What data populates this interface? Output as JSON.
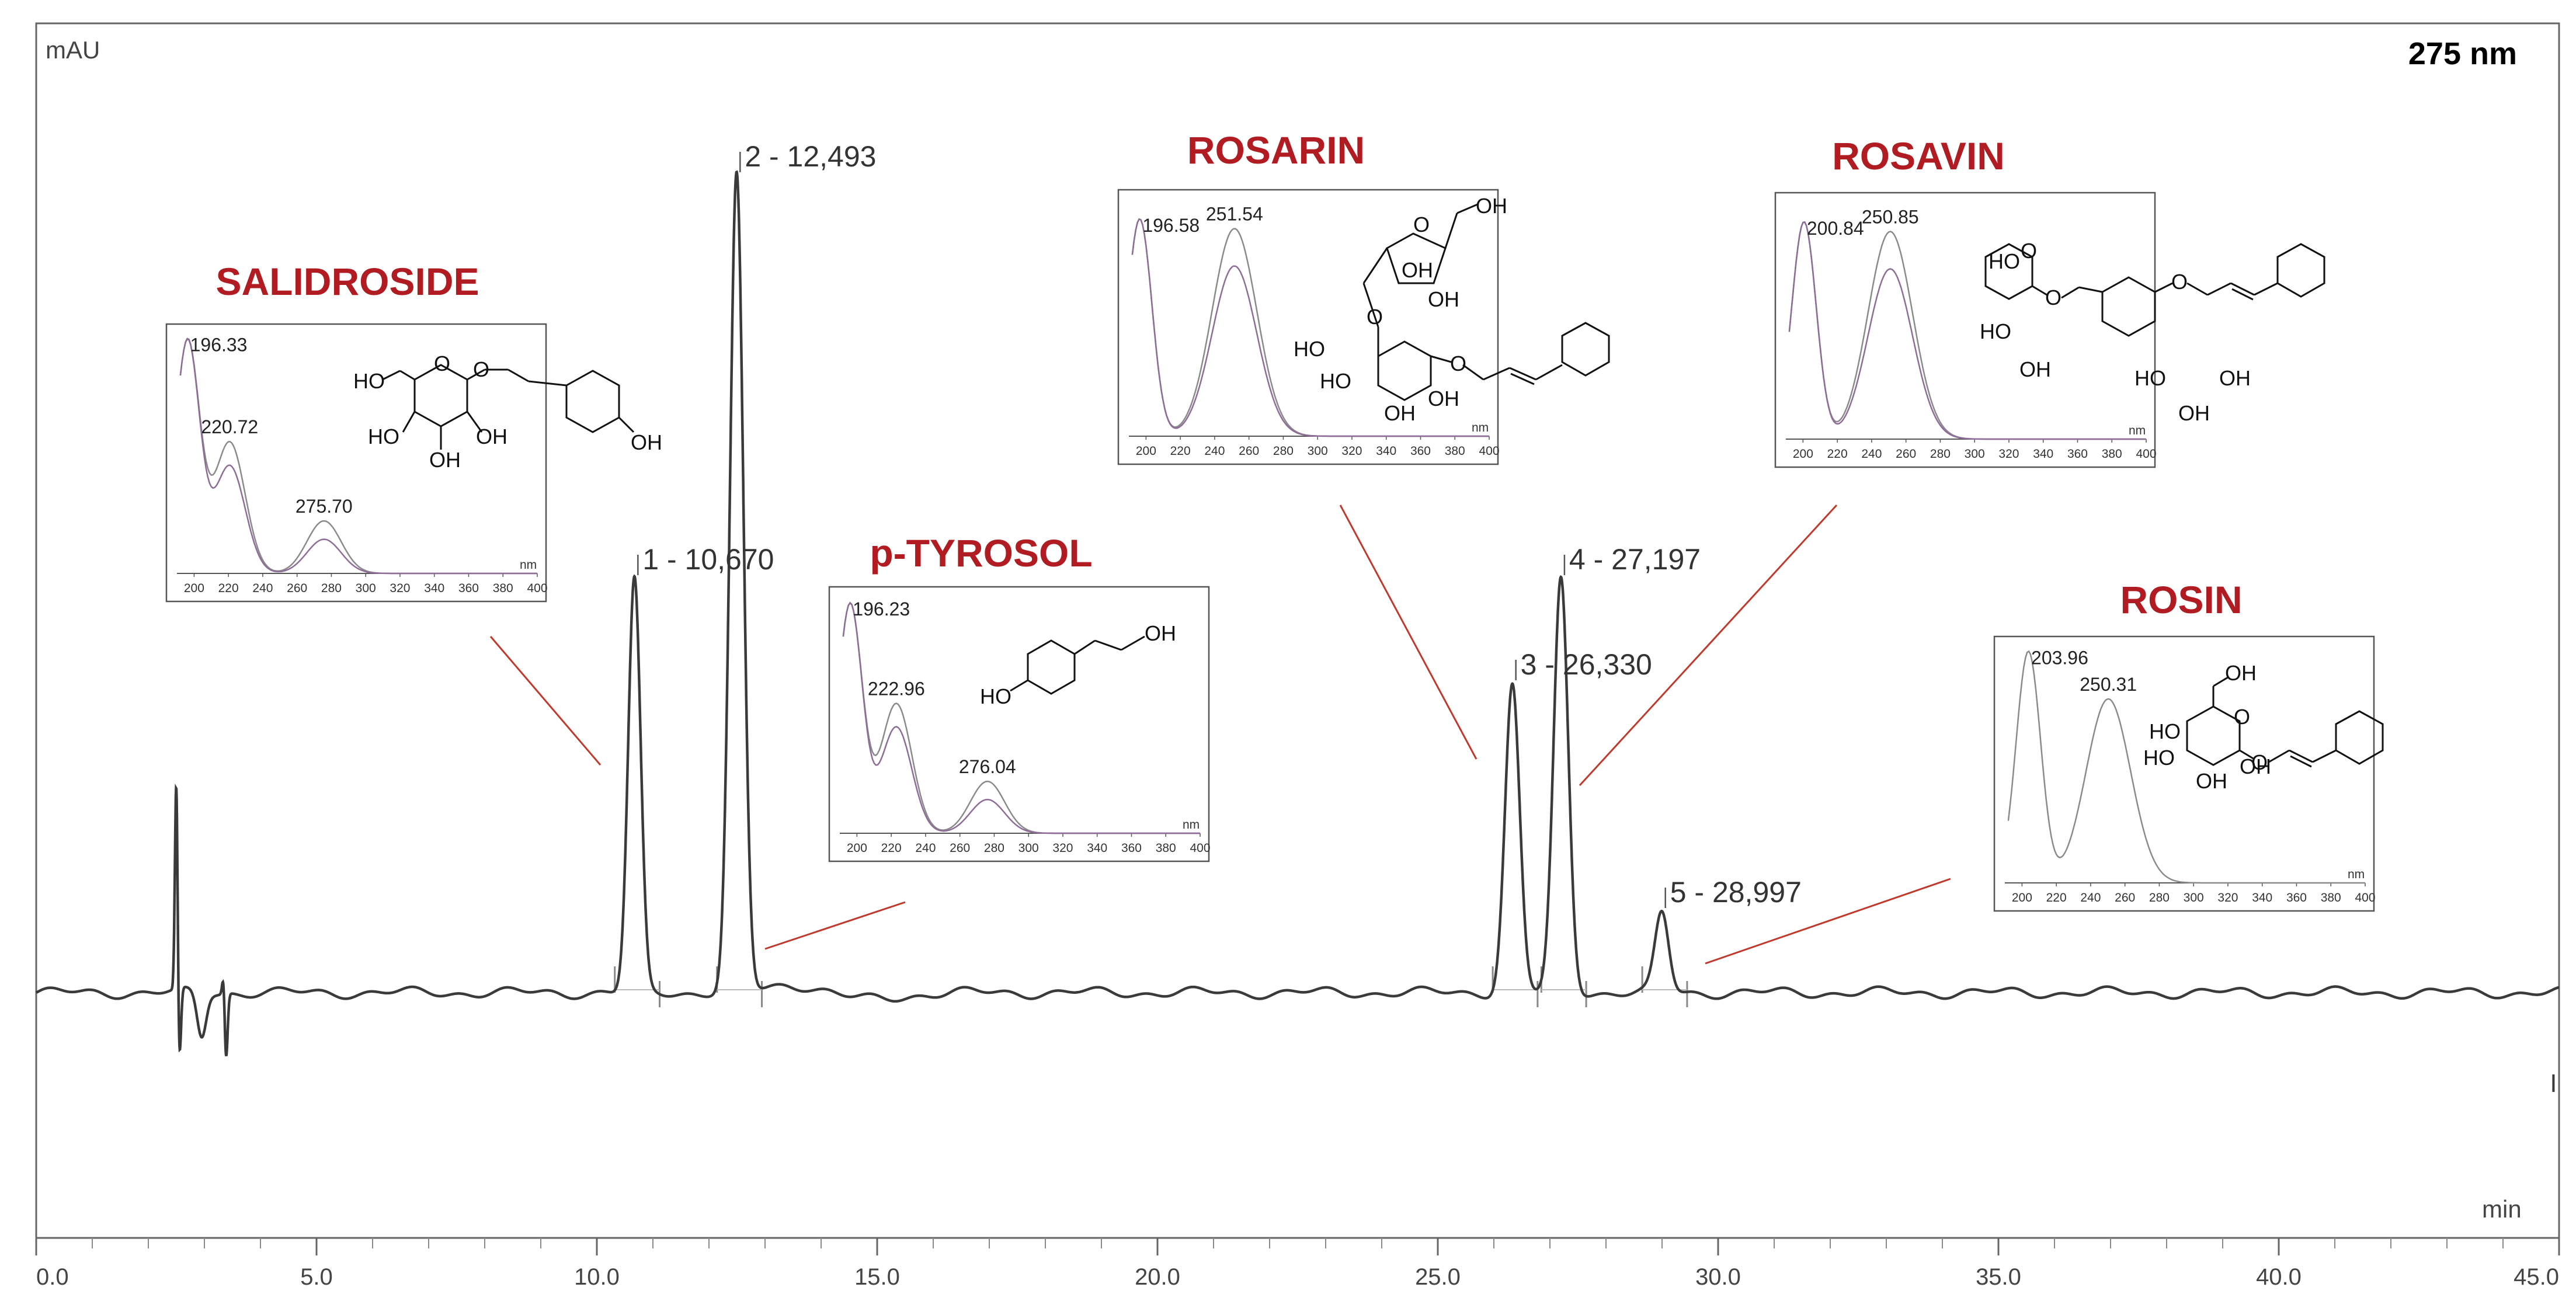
{
  "chart_data": {
    "type": "line",
    "title": "",
    "wavelength_label": "275 nm",
    "ylabel": "mAU",
    "xlabel": "min",
    "xlim": [
      0,
      45
    ],
    "x_ticks": [
      "0.0",
      "5.0",
      "10.0",
      "15.0",
      "20.0",
      "25.0",
      "30.0",
      "35.0",
      "40.0",
      "45.0"
    ],
    "grid": false,
    "peaks": [
      {
        "id": 1,
        "rt": 10.67,
        "height": 0.47,
        "label": "1 - 10,670"
      },
      {
        "id": 2,
        "rt": 12.493,
        "height": 0.93,
        "label": "2 - 12,493"
      },
      {
        "id": 3,
        "rt": 26.33,
        "height": 0.35,
        "label": "3 - 26,330"
      },
      {
        "id": 4,
        "rt": 27.197,
        "height": 0.47,
        "label": "4 - 27,197"
      },
      {
        "id": 5,
        "rt": 28.997,
        "height": 0.09,
        "label": "5 - 28,997"
      }
    ],
    "insets": [
      {
        "name": "SALIDROSIDE",
        "peak_id": 1,
        "uv_maxima": [
          "196.33",
          "220.72",
          "275.70"
        ],
        "x_ticks": [
          "200",
          "220",
          "240",
          "260",
          "280",
          "300",
          "320",
          "340",
          "360",
          "380",
          "400"
        ],
        "x_unit": "nm",
        "substituents": [
          "HO",
          "HO",
          "OH",
          "OH",
          "OH"
        ]
      },
      {
        "name": "p-TYROSOL",
        "peak_id": 2,
        "uv_maxima": [
          "196.23",
          "222.96",
          "276.04"
        ],
        "x_ticks": [
          "200",
          "220",
          "240",
          "260",
          "280",
          "300",
          "320",
          "340",
          "360",
          "380",
          "400"
        ],
        "x_unit": "nm",
        "substituents": [
          "HO",
          "OH"
        ]
      },
      {
        "name": "ROSARIN",
        "peak_id": 3,
        "uv_maxima": [
          "196.58",
          "251.54"
        ],
        "x_ticks": [
          "200",
          "220",
          "240",
          "260",
          "280",
          "300",
          "320",
          "340",
          "360",
          "380",
          "400"
        ],
        "x_unit": "nm",
        "substituents": [
          "OH",
          "OH",
          "OH",
          "HO",
          "HO",
          "OH",
          "OH"
        ]
      },
      {
        "name": "ROSAVIN",
        "peak_id": 4,
        "uv_maxima": [
          "200.84",
          "250.85"
        ],
        "x_ticks": [
          "200",
          "220",
          "240",
          "260",
          "280",
          "300",
          "320",
          "340",
          "360",
          "380",
          "400"
        ],
        "x_unit": "nm",
        "substituents": [
          "HO",
          "HO",
          "OH",
          "HO",
          "OH",
          "OH"
        ]
      },
      {
        "name": "ROSIN",
        "peak_id": 5,
        "uv_maxima": [
          "203.96",
          "250.31"
        ],
        "x_ticks": [
          "200",
          "220",
          "240",
          "260",
          "280",
          "300",
          "320",
          "340",
          "360",
          "380",
          "400"
        ],
        "x_unit": "nm",
        "substituents": [
          "OH",
          "HO",
          "HO",
          "OH",
          "OH"
        ]
      }
    ]
  },
  "colors": {
    "trace": "#3a3a3a",
    "compound_label": "#b01c22",
    "leader_line": "#c0392b",
    "inset_border": "#555555"
  }
}
